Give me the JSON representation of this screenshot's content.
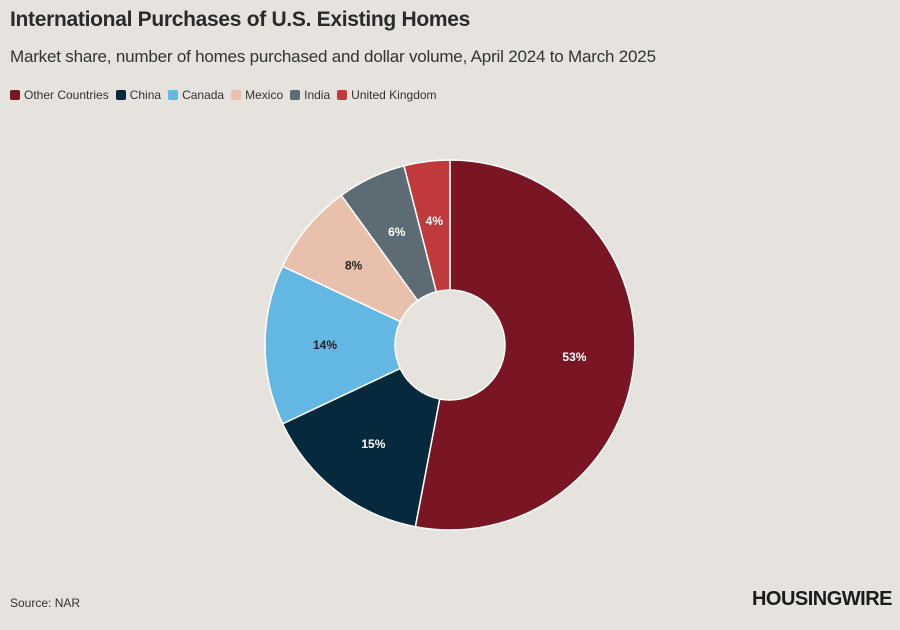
{
  "chart_data": {
    "type": "pie",
    "title": "International Purchases of U.S. Existing Homes",
    "subtitle": "Market share, number of homes purchased and dollar volume, April 2024 to March 2025",
    "categories": [
      "Other Countries",
      "China",
      "Canada",
      "Mexico",
      "India",
      "United Kingdom"
    ],
    "values": [
      53,
      15,
      14,
      8,
      6,
      4
    ],
    "labels": [
      "53%",
      "15%",
      "14%",
      "8%",
      "6%",
      "4%"
    ],
    "colors": [
      "#7a1623",
      "#06293d",
      "#62b8e3",
      "#e8c0ab",
      "#5c6b74",
      "#c03a3b"
    ],
    "label_colors": [
      "#ffffff",
      "#ffffff",
      "#222222",
      "#222222",
      "#ffffff",
      "#ffffff"
    ],
    "donut": true,
    "legend_position": "top-left"
  },
  "source": "Source: NAR",
  "brand": "HOUSINGWIRE",
  "background": "#e6e2dd"
}
